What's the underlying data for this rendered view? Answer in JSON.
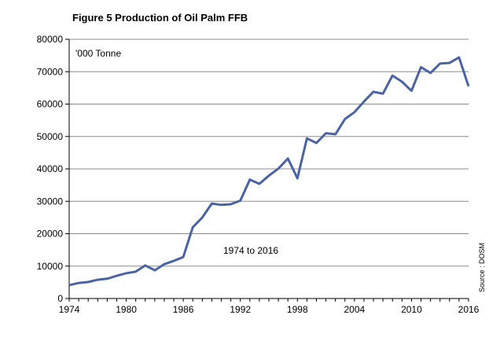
{
  "chart_data": {
    "type": "line",
    "title": "Figure 5 Production of Oil Palm FFB",
    "unit_label": "'000 Tonne",
    "annotation": "1974 to 2016",
    "source": "Source : DOSM",
    "xlim": [
      1974,
      2016
    ],
    "ylim": [
      0,
      80000
    ],
    "x_ticks": [
      1974,
      1980,
      1986,
      1992,
      1998,
      2004,
      2010,
      2016
    ],
    "y_ticks": [
      0,
      10000,
      20000,
      30000,
      40000,
      50000,
      60000,
      70000,
      80000
    ],
    "grid": "horizontal",
    "legend": "none",
    "colors": {
      "line": "#4a64a3",
      "grid": "#8c8c8c",
      "axis": "#000000"
    },
    "series": [
      {
        "x": [
          1974,
          1975,
          1976,
          1977,
          1978,
          1979,
          1980,
          1981,
          1982,
          1983,
          1984,
          1985,
          1986,
          1987,
          1988,
          1989,
          1990,
          1991,
          1992,
          1993,
          1994,
          1995,
          1996,
          1997,
          1998,
          1999,
          2000,
          2001,
          2002,
          2003,
          2004,
          2005,
          2006,
          2007,
          2008,
          2009,
          2010,
          2011,
          2012,
          2013,
          2014,
          2015,
          2016
        ],
        "values": [
          4100,
          4800,
          5100,
          5800,
          6100,
          7000,
          7800,
          8300,
          10200,
          8700,
          10600,
          11600,
          12800,
          22000,
          25000,
          29300,
          28900,
          29100,
          30200,
          36700,
          35400,
          37900,
          40100,
          43200,
          37100,
          49400,
          48000,
          51000,
          50700,
          55400,
          57500,
          60800,
          63800,
          63200,
          68800,
          66900,
          64100,
          71400,
          69600,
          72500,
          72700,
          74400,
          65500
        ]
      }
    ]
  }
}
